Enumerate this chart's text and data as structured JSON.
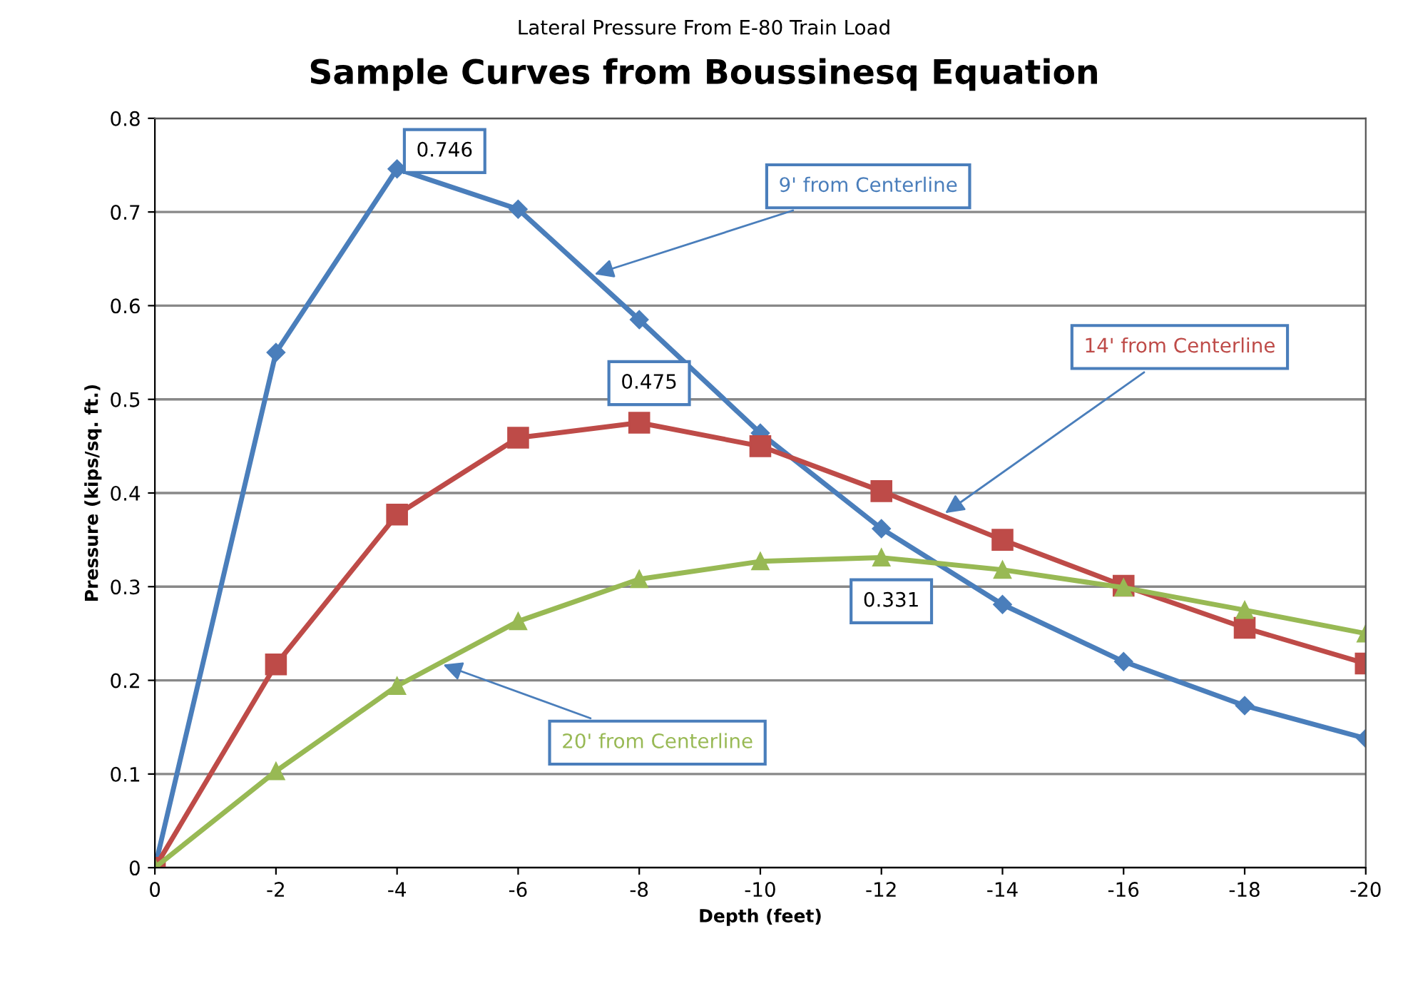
{
  "chart_data": {
    "type": "line",
    "title": "Sample Curves from Boussinesq Equation",
    "subtitle": "Lateral Pressure From E-80 Train Load",
    "xlabel": "Depth (feet)",
    "ylabel": "Pressure (kips/sq. ft.)",
    "x": [
      0,
      -2,
      -4,
      -6,
      -8,
      -10,
      -12,
      -14,
      -16,
      -18,
      -20
    ],
    "series": [
      {
        "name": "9' from Centerline",
        "color": "#4a7ebb",
        "marker": "diamond",
        "values": [
          0,
          0.55,
          0.746,
          0.703,
          0.585,
          0.464,
          0.362,
          0.281,
          0.22,
          0.173,
          0.138
        ]
      },
      {
        "name": "14' from Centerline",
        "color": "#be4b48",
        "marker": "square",
        "values": [
          0,
          0.217,
          0.377,
          0.459,
          0.475,
          0.45,
          0.402,
          0.35,
          0.301,
          0.256,
          0.218
        ]
      },
      {
        "name": "20' from Centerline",
        "color": "#98b954",
        "marker": "triangle",
        "values": [
          0,
          0.103,
          0.194,
          0.263,
          0.308,
          0.327,
          0.331,
          0.318,
          0.299,
          0.275,
          0.25
        ]
      }
    ],
    "annotations": [
      {
        "text": "0.746",
        "x": -4,
        "y": 0.746
      },
      {
        "text": "0.475",
        "x": -8,
        "y": 0.475
      },
      {
        "text": "0.331",
        "x": -12,
        "y": 0.331
      }
    ],
    "xlim": [
      0,
      -20
    ],
    "xticks": [
      0,
      -2,
      -4,
      -6,
      -8,
      -10,
      -12,
      -14,
      -16,
      -18,
      -20
    ],
    "ylim": [
      0,
      0.8
    ],
    "yticks": [
      0,
      0.1,
      0.2,
      0.3,
      0.4,
      0.5,
      0.6,
      0.7,
      0.8
    ],
    "grid": "y",
    "line_style": "solid",
    "legend": false
  }
}
